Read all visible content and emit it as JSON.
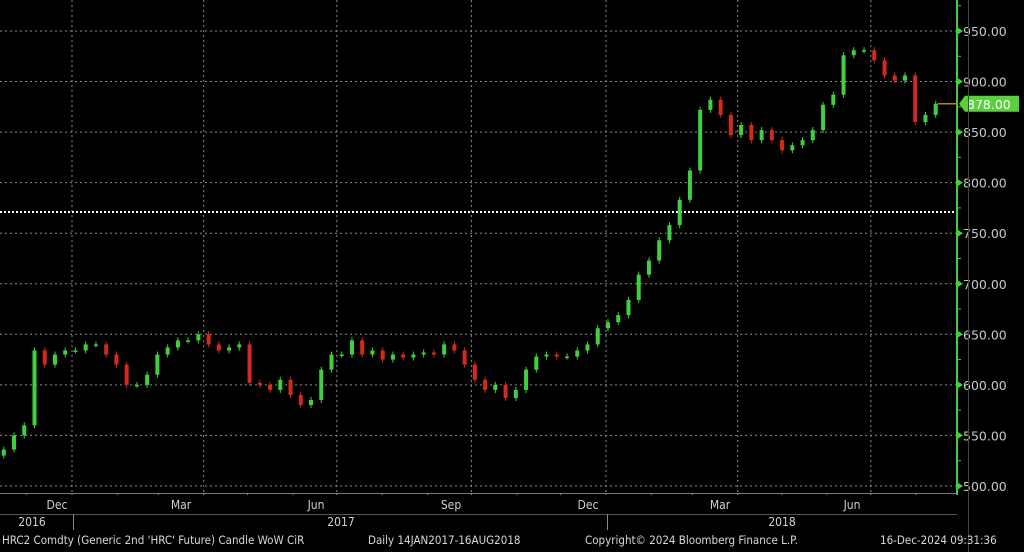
{
  "chart_data": {
    "type": "candlestick",
    "security": "HRC2 Comdty (Generic 2nd 'HRC' Future) Candle WoW CiR",
    "period": "Daily 14JAN2017-16AUG2018",
    "ylim": [
      490,
      965
    ],
    "y_ticks": [
      "950.00",
      "900.00",
      "850.00",
      "800.00",
      "750.00",
      "700.00",
      "650.00",
      "600.00",
      "550.00",
      "500.00"
    ],
    "y_tick_values": [
      950,
      900,
      850,
      800,
      750,
      700,
      650,
      600,
      550,
      500
    ],
    "x_month_labels": [
      {
        "label": "Dec",
        "date": "2016-12-01"
      },
      {
        "label": "Mar",
        "date": "2017-03-01"
      },
      {
        "label": "Jun",
        "date": "2017-06-01"
      },
      {
        "label": "Sep",
        "date": "2017-09-01"
      },
      {
        "label": "Dec",
        "date": "2017-12-01"
      },
      {
        "label": "Mar",
        "date": "2018-03-01"
      },
      {
        "label": "Jun",
        "date": "2018-06-01"
      }
    ],
    "x_year_labels": [
      "2016",
      "2017",
      "2018"
    ],
    "grid": true,
    "last_price": "878.00",
    "last_price_value": 878,
    "reference_line_value": 771,
    "first_open": 530,
    "dates": [
      "2016-11-14",
      "2016-11-21",
      "2016-11-28",
      "2016-12-05",
      "2016-12-12",
      "2016-12-19",
      "2016-12-26",
      "2017-01-02",
      "2017-01-09",
      "2017-01-16",
      "2017-01-23",
      "2017-01-30",
      "2017-02-06",
      "2017-02-13",
      "2017-02-20",
      "2017-02-27",
      "2017-03-06",
      "2017-03-13",
      "2017-03-20",
      "2017-03-27",
      "2017-04-03",
      "2017-04-10",
      "2017-04-17",
      "2017-04-24",
      "2017-05-01",
      "2017-05-08",
      "2017-05-15",
      "2017-05-22",
      "2017-05-29",
      "2017-06-05",
      "2017-06-12",
      "2017-06-19",
      "2017-06-26",
      "2017-07-03",
      "2017-07-10",
      "2017-07-17",
      "2017-07-24",
      "2017-07-31",
      "2017-08-07",
      "2017-08-14",
      "2017-08-21",
      "2017-08-28",
      "2017-09-04",
      "2017-09-11",
      "2017-09-18",
      "2017-09-25",
      "2017-10-02",
      "2017-10-09",
      "2017-10-16",
      "2017-10-23",
      "2017-10-30",
      "2017-11-06",
      "2017-11-13",
      "2017-11-20",
      "2017-11-27",
      "2017-12-04",
      "2017-12-11",
      "2017-12-18",
      "2017-12-25",
      "2018-01-01",
      "2018-01-08",
      "2018-01-15",
      "2018-01-22",
      "2018-01-29",
      "2018-02-05",
      "2018-02-12",
      "2018-02-19",
      "2018-02-26",
      "2018-03-05",
      "2018-03-12",
      "2018-03-19",
      "2018-03-26",
      "2018-04-02",
      "2018-04-09",
      "2018-04-16",
      "2018-04-23",
      "2018-04-30",
      "2018-05-07",
      "2018-05-14",
      "2018-05-21",
      "2018-05-28",
      "2018-06-04",
      "2018-06-11",
      "2018-06-18",
      "2018-06-25",
      "2018-07-02",
      "2018-07-09",
      "2018-07-16",
      "2018-07-23",
      "2018-07-30",
      "2018-08-06",
      "2018-08-13"
    ],
    "closes": [
      536,
      550,
      560,
      634,
      620,
      630,
      634,
      634,
      640,
      640,
      630,
      620,
      600,
      600,
      610,
      630,
      637,
      644,
      644,
      650,
      640,
      634,
      637,
      640,
      602,
      600,
      595,
      605,
      590,
      580,
      585,
      615,
      630,
      630,
      644,
      630,
      634,
      625,
      630,
      627,
      630,
      632,
      630,
      640,
      634,
      620,
      605,
      595,
      600,
      587,
      595,
      615,
      628,
      630,
      628,
      628,
      634,
      640,
      656,
      662,
      669,
      684,
      709,
      723,
      743,
      758,
      783,
      812,
      872,
      882,
      867,
      847,
      857,
      842,
      852,
      842,
      832,
      837,
      842,
      852,
      877,
      887,
      926,
      931,
      931,
      921,
      906,
      901,
      906,
      860,
      867,
      878
    ]
  },
  "colors": {
    "up": "#3fcf3f",
    "down": "#d42a1e",
    "axis": "#3fcf3f",
    "last_price_bg": "#5ccf3f",
    "last_price_line": "#c07a2a",
    "grid": "#8a8a8a",
    "reference": "#ffffff"
  },
  "footer": {
    "security": "HRC2 Comdty (Generic 2nd 'HRC' Future) Candle WoW CiR",
    "period": "Daily 14JAN2017-16AUG2018",
    "copyright": "Copyright© 2024 Bloomberg Finance L.P.",
    "timestamp": "16-Dec-2024 09:31:36"
  }
}
